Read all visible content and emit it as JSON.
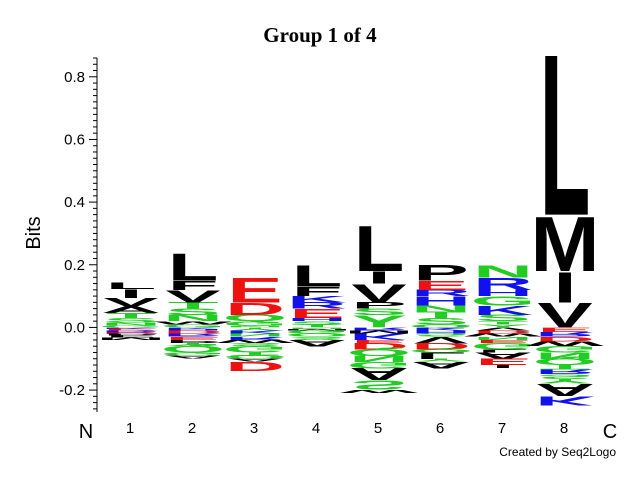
{
  "chart_data": {
    "type": "sequence-logo",
    "title": "Group 1 of 4",
    "ylabel": "Bits",
    "ylim": [
      -0.27,
      0.86
    ],
    "yticks": [
      -0.2,
      0.0,
      0.2,
      0.4,
      0.6,
      0.8
    ],
    "ytick_labels": [
      "-0.2",
      "0.0",
      "0.2",
      "0.4",
      "0.6",
      "0.8"
    ],
    "x_start_label": "N",
    "x_end_label": "C",
    "positions": [
      "1",
      "2",
      "3",
      "4",
      "5",
      "6",
      "7",
      "8"
    ],
    "credit": "Created by Seq2Logo",
    "colors": {
      "hydrophobic": "#000000",
      "polar": "#22cc22",
      "acidic": "#ee1111",
      "basic": "#1111ee"
    },
    "columns": [
      {
        "position": "1",
        "positive": [
          [
            "G",
            0.006
          ],
          [
            "N",
            0.01
          ],
          [
            "S",
            0.014
          ],
          [
            "T",
            0.016
          ],
          [
            "A",
            0.02
          ],
          [
            "V",
            0.028
          ],
          [
            "I",
            0.028
          ],
          [
            "L",
            0.02
          ]
        ],
        "negative": [
          [
            "K",
            0.004
          ],
          [
            "E",
            0.006
          ],
          [
            "R",
            0.006
          ],
          [
            "D",
            0.004
          ],
          [
            "P",
            0.006
          ],
          [
            "F",
            0.006
          ],
          [
            "M",
            0.008
          ]
        ]
      },
      {
        "position": "2",
        "positive": [
          [
            "G",
            0.01
          ],
          [
            "W",
            0.01
          ],
          [
            "N",
            0.02
          ],
          [
            "S",
            0.02
          ],
          [
            "T",
            0.02
          ],
          [
            "V",
            0.04
          ],
          [
            "F",
            0.03
          ],
          [
            "L",
            0.09
          ]
        ],
        "negative": [
          [
            "K",
            0.005
          ],
          [
            "H",
            0.005
          ],
          [
            "D",
            0.01
          ],
          [
            "R",
            0.01
          ],
          [
            "E",
            0.01
          ],
          [
            "P",
            0.01
          ],
          [
            "Y",
            0.01
          ],
          [
            "Q",
            0.02
          ],
          [
            "G",
            0.01
          ],
          [
            "A",
            0.01
          ]
        ]
      },
      {
        "position": "3",
        "positive": [
          [
            "N",
            0.005
          ],
          [
            "G",
            0.015
          ],
          [
            "Q",
            0.02
          ],
          [
            "D",
            0.04
          ],
          [
            "E",
            0.08
          ]
        ],
        "negative": [
          [
            "Y",
            0.01
          ],
          [
            "K",
            0.01
          ],
          [
            "N",
            0.01
          ],
          [
            "R",
            0.01
          ],
          [
            "W",
            0.01
          ],
          [
            "S",
            0.01
          ],
          [
            "G",
            0.02
          ],
          [
            "T",
            0.01
          ],
          [
            "Q",
            0.01
          ],
          [
            "A",
            0.01
          ],
          [
            "D",
            0.03
          ]
        ]
      },
      {
        "position": "4",
        "positive": [
          [
            "T",
            0.01
          ],
          [
            "S",
            0.01
          ],
          [
            "H",
            0.01
          ],
          [
            "E",
            0.03
          ],
          [
            "R",
            0.02
          ],
          [
            "K",
            0.02
          ],
          [
            "F",
            0.03
          ],
          [
            "L",
            0.07
          ]
        ],
        "negative": [
          [
            "N",
            0.005
          ],
          [
            "M",
            0.005
          ],
          [
            "G",
            0.01
          ],
          [
            "Q",
            0.01
          ],
          [
            "S",
            0.01
          ],
          [
            "A",
            0.02
          ]
        ]
      },
      {
        "position": "5",
        "positive": [
          [
            "Y",
            0.04
          ],
          [
            "S",
            0.02
          ],
          [
            "P",
            0.02
          ],
          [
            "V",
            0.06
          ],
          [
            "I",
            0.04
          ],
          [
            "L",
            0.15
          ]
        ],
        "negative": [
          [
            "R",
            0.01
          ],
          [
            "M",
            0.01
          ],
          [
            "K",
            0.02
          ],
          [
            "E",
            0.01
          ],
          [
            "D",
            0.02
          ],
          [
            "Q",
            0.02
          ],
          [
            "N",
            0.02
          ],
          [
            "G",
            0.02
          ],
          [
            "A",
            0.04
          ],
          [
            "S",
            0.03
          ],
          [
            "W",
            0.01
          ]
        ]
      },
      {
        "position": "6",
        "positive": [
          [
            "Q",
            0.01
          ],
          [
            "S",
            0.02
          ],
          [
            "T",
            0.02
          ],
          [
            "N",
            0.02
          ],
          [
            "H",
            0.03
          ],
          [
            "R",
            0.02
          ],
          [
            "E",
            0.03
          ],
          [
            "P",
            0.05
          ]
        ],
        "negative": [
          [
            "K",
            0.01
          ],
          [
            "H",
            0.01
          ],
          [
            "S",
            0.01
          ],
          [
            "V",
            0.02
          ],
          [
            "D",
            0.02
          ],
          [
            "Q",
            0.01
          ],
          [
            "L",
            0.02
          ],
          [
            "Y",
            0.01
          ],
          [
            "A",
            0.02
          ]
        ]
      },
      {
        "position": "7",
        "positive": [
          [
            "Y",
            0.01
          ],
          [
            "T",
            0.01
          ],
          [
            "S",
            0.02
          ],
          [
            "K",
            0.03
          ],
          [
            "G",
            0.03
          ],
          [
            "H",
            0.02
          ],
          [
            "R",
            0.04
          ],
          [
            "N",
            0.04
          ]
        ],
        "negative": [
          [
            "V",
            0.01
          ],
          [
            "D",
            0.01
          ],
          [
            "W",
            0.01
          ],
          [
            "N",
            0.01
          ],
          [
            "E",
            0.01
          ],
          [
            "G",
            0.02
          ],
          [
            "L",
            0.01
          ],
          [
            "A",
            0.02
          ],
          [
            "E",
            0.02
          ],
          [
            "I",
            0.01
          ]
        ]
      },
      {
        "position": "8",
        "positive": [
          [
            "V",
            0.08
          ],
          [
            "I",
            0.1
          ],
          [
            "M",
            0.18
          ],
          [
            "L",
            0.53
          ]
        ],
        "negative": [
          [
            "E",
            0.015
          ],
          [
            "R",
            0.015
          ],
          [
            "D",
            0.015
          ],
          [
            "W",
            0.015
          ],
          [
            "G",
            0.02
          ],
          [
            "N",
            0.02
          ],
          [
            "Q",
            0.02
          ],
          [
            "T",
            0.015
          ],
          [
            "R",
            0.015
          ],
          [
            "S",
            0.015
          ],
          [
            "Y",
            0.015
          ],
          [
            "A",
            0.04
          ],
          [
            "K",
            0.03
          ]
        ]
      }
    ]
  }
}
